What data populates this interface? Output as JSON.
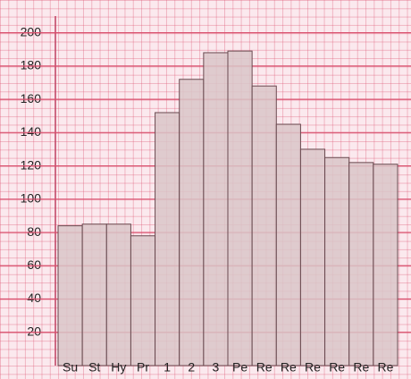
{
  "chart_data": {
    "type": "bar",
    "categories": [
      "Su",
      "St",
      "Hy",
      "Pr",
      "1",
      "2",
      "3",
      "Pe",
      "Re",
      "Re",
      "Re",
      "Re",
      "Re",
      "Re"
    ],
    "values": [
      84,
      85,
      85,
      78,
      152,
      172,
      188,
      189,
      168,
      145,
      130,
      125,
      122,
      121
    ],
    "color": "#d9c6c8",
    "ylim": [
      0,
      210
    ],
    "yticks": [
      20,
      40,
      60,
      80,
      100,
      120,
      140,
      160,
      180,
      200
    ],
    "grid": true
  }
}
